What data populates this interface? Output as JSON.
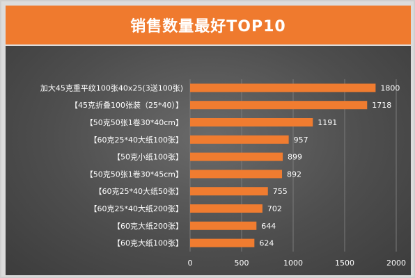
{
  "chart_data": {
    "type": "bar",
    "orientation": "horizontal",
    "title": "销售数量最好TOP10",
    "categories": [
      "加大45克重平纹100张40x25(3送100张)",
      "【45克折叠100张装（25*40）】",
      "【50克50张1卷30*40cm】",
      "【60克25*40大纸100张】",
      "【50克小纸100张】",
      "【50克50张1卷30*45cm】",
      "【60克25*40大纸50张】",
      "【60克25*40大纸200张】",
      "【60克大纸200张】",
      "【60克大纸100张】"
    ],
    "values": [
      1800,
      1718,
      1191,
      957,
      899,
      892,
      755,
      702,
      644,
      624
    ],
    "xlim": [
      0,
      2000
    ],
    "xticks": [
      0,
      500,
      1000,
      1500,
      2000
    ],
    "grid": true,
    "legend": "none",
    "colors": {
      "bar": "#f07c30",
      "title_bg": "#ef7a2e",
      "grid": "#7a7a7a",
      "text": "#ffffff"
    }
  }
}
